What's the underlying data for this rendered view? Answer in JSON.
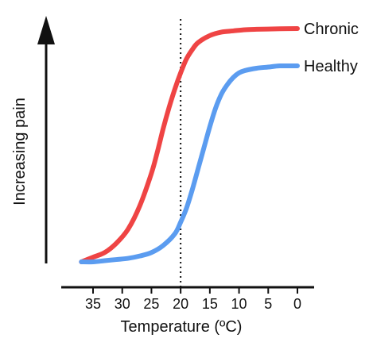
{
  "chart_data": {
    "type": "line",
    "title": "",
    "xlabel": "Temperature (ºC)",
    "ylabel": "Increasing pain",
    "x_reversed": true,
    "xlim": [
      38,
      -2
    ],
    "ylim": [
      0,
      1
    ],
    "x_ticks": [
      35,
      30,
      25,
      20,
      15,
      10,
      5,
      0
    ],
    "x_tick_labels": [
      "35",
      "30",
      "25",
      "20",
      "15",
      "10",
      "5",
      "0"
    ],
    "y_axis_style": "arrow, no ticks",
    "grid": false,
    "reference_line": {
      "x": 20,
      "style": "dotted"
    },
    "series": [
      {
        "name": "Chronic",
        "color": "#ef4444",
        "x": [
          37,
          35,
          33,
          31,
          29,
          27,
          25,
          24,
          23,
          22,
          21,
          20,
          19,
          18,
          17,
          15,
          13,
          11,
          9,
          7,
          5,
          3,
          0
        ],
        "y": [
          0.0,
          0.02,
          0.04,
          0.08,
          0.14,
          0.24,
          0.38,
          0.47,
          0.57,
          0.66,
          0.74,
          0.81,
          0.87,
          0.91,
          0.94,
          0.97,
          0.985,
          0.99,
          0.995,
          0.997,
          0.998,
          0.999,
          1.0
        ]
      },
      {
        "name": "Healthy",
        "color": "#5b9cf0",
        "x": [
          37,
          35,
          33,
          31,
          29,
          27,
          25,
          23,
          21,
          20,
          19,
          18,
          17,
          16,
          15,
          14,
          13,
          12,
          11,
          10,
          9,
          7,
          5,
          3,
          0
        ],
        "y": [
          0.0,
          0.0,
          0.005,
          0.01,
          0.015,
          0.025,
          0.04,
          0.07,
          0.12,
          0.17,
          0.23,
          0.31,
          0.4,
          0.49,
          0.58,
          0.66,
          0.72,
          0.76,
          0.79,
          0.81,
          0.82,
          0.83,
          0.835,
          0.84,
          0.84
        ]
      }
    ]
  }
}
